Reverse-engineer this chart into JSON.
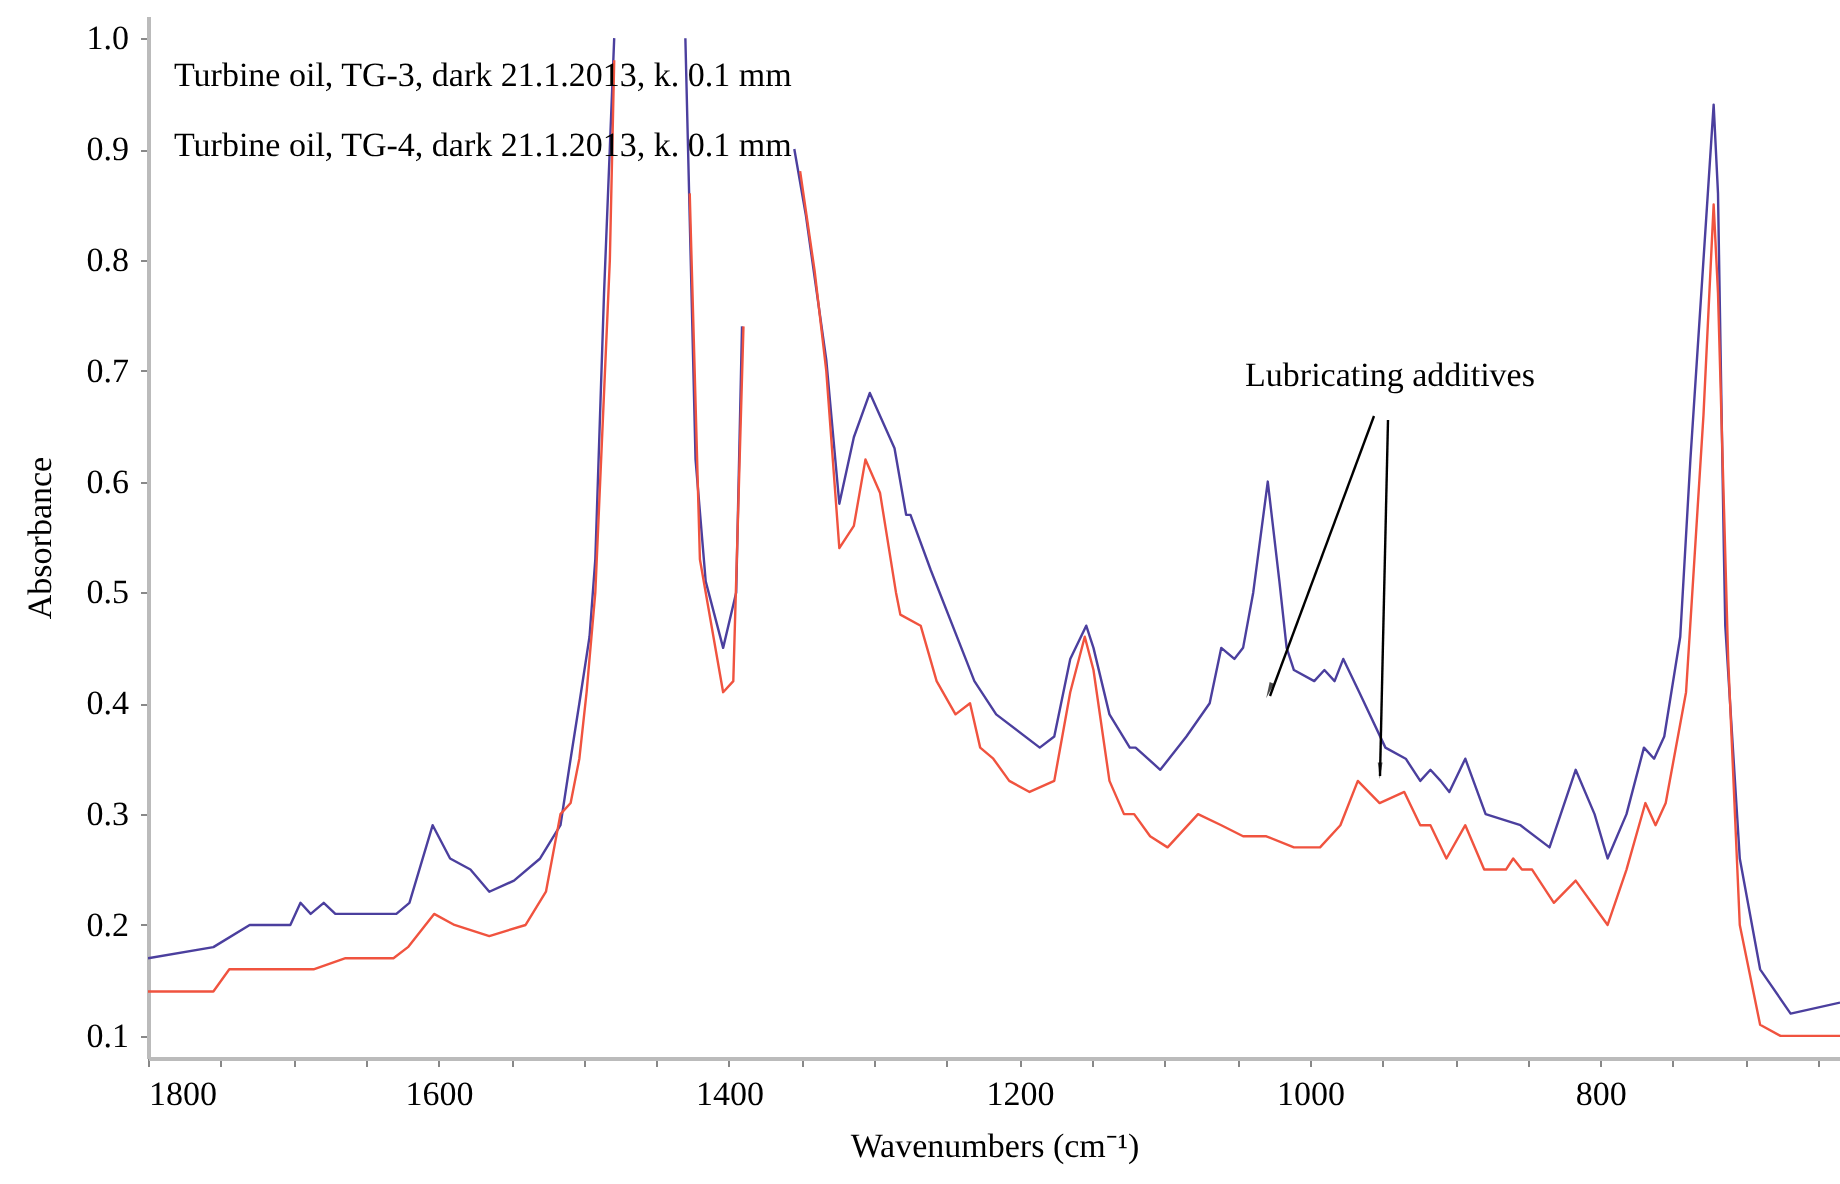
{
  "chart_data": {
    "type": "line",
    "xlabel": "Wavenumbers (cm⁻¹)",
    "ylabel": "Absorbance",
    "xlim": [
      1800,
      635
    ],
    "ylim": [
      0.08,
      1.02
    ],
    "xticks": [
      1800,
      {
        "value": 1750,
        "label": null
      },
      {
        "value": 1700,
        "label": null
      },
      {
        "value": 1650,
        "label": null
      },
      1600,
      {
        "value": 1550,
        "label": null
      },
      {
        "value": 1500,
        "label": null
      },
      {
        "value": 1450,
        "label": null
      },
      1400,
      {
        "value": 1350,
        "label": null
      },
      {
        "value": 1300,
        "label": null
      },
      {
        "value": 1250,
        "label": null
      },
      1200,
      {
        "value": 1150,
        "label": null
      },
      {
        "value": 1100,
        "label": null
      },
      {
        "value": 1050,
        "label": null
      },
      1000,
      {
        "value": 950,
        "label": null
      },
      {
        "value": 900,
        "label": null
      },
      {
        "value": 850,
        "label": null
      },
      800,
      {
        "value": 750,
        "label": null
      },
      {
        "value": 700,
        "label": null
      },
      {
        "value": 650,
        "label": null
      }
    ],
    "yticks": [
      0.1,
      0.2,
      0.3,
      0.4,
      0.5,
      0.6,
      0.7,
      0.8,
      0.9,
      {
        "value": 1,
        "label": "1.0"
      }
    ],
    "grid": false,
    "marker": "none",
    "line_style": "solid",
    "annotations": [
      "Turbine oil, TG-3, dark 21.1.2013, k. 0.1 mm",
      "Turbine oil, TG-4, dark 21.1.2013, k. 0.1 mm",
      "Lubricating additives"
    ],
    "series": [
      {
        "color": "#4b3f9e",
        "x": [
          1800,
          1755,
          1730,
          1702,
          1695,
          1688,
          1679,
          1671,
          1661,
          1650,
          1629,
          1620,
          1604,
          1592,
          1578,
          1565,
          1548,
          1530,
          1516,
          1509,
          1503,
          1496,
          1492,
          1486,
          1479,
          1477,
          1455,
          1432,
          1430,
          1423,
          1416,
          1404,
          1395,
          1391,
          1384,
          1372,
          1361,
          1355,
          1347,
          1333,
          1324,
          1314,
          1303,
          1286,
          1278,
          1275,
          1261,
          1237,
          1231,
          1216,
          1186,
          1176,
          1165,
          1154,
          1149,
          1138,
          1124,
          1120,
          1103,
          1085,
          1069,
          1061,
          1052,
          1046,
          1039,
          1029,
          1021,
          1016,
          1011,
          997,
          990,
          983,
          977,
          966,
          948,
          934,
          924,
          917,
          910,
          904,
          893,
          879,
          855,
          835,
          817,
          804,
          795,
          782,
          770,
          763,
          756,
          745,
          738,
          729,
          722,
          719,
          715,
          714,
          704,
          690,
          669,
          635
        ],
        "values": [
          0.17,
          0.18,
          0.2,
          0.2,
          0.22,
          0.21,
          0.22,
          0.21,
          0.21,
          0.21,
          0.21,
          0.22,
          0.29,
          0.26,
          0.25,
          0.23,
          0.24,
          0.26,
          0.29,
          0.35,
          0.4,
          0.46,
          0.53,
          0.77,
          1.0,
          null,
          null,
          null,
          1.0,
          0.62,
          0.51,
          0.45,
          0.5,
          0.74,
          null,
          null,
          null,
          0.9,
          0.84,
          0.71,
          0.58,
          0.64,
          0.68,
          0.63,
          0.57,
          0.57,
          0.52,
          0.44,
          0.42,
          0.39,
          0.36,
          0.37,
          0.44,
          0.47,
          0.45,
          0.39,
          0.36,
          0.36,
          0.34,
          0.37,
          0.4,
          0.45,
          0.44,
          0.45,
          0.5,
          0.6,
          0.51,
          0.45,
          0.43,
          0.42,
          0.43,
          0.42,
          0.44,
          0.41,
          0.36,
          0.35,
          0.33,
          0.34,
          0.33,
          0.32,
          0.35,
          0.3,
          0.29,
          0.27,
          0.34,
          0.3,
          0.26,
          0.3,
          0.36,
          0.35,
          0.37,
          0.46,
          0.62,
          0.8,
          0.94,
          0.86,
          0.54,
          0.47,
          0.26,
          0.16,
          0.12,
          0.13
        ]
      },
      {
        "color": "#f0533f",
        "x": [
          1800,
          1792,
          1782,
          1755,
          1744,
          1730,
          1709,
          1686,
          1664,
          1631,
          1621,
          1603,
          1589,
          1565,
          1540,
          1526,
          1516,
          1509,
          1503,
          1498,
          1492,
          1482,
          1479,
          1476,
          1450,
          1432,
          1427,
          1420,
          1404,
          1397,
          1390,
          1386,
          1372,
          1359,
          1351,
          1341,
          1333,
          1324,
          1314,
          1306,
          1296,
          1285,
          1282,
          1268,
          1257,
          1244,
          1234,
          1227,
          1218,
          1207,
          1193,
          1176,
          1165,
          1155,
          1149,
          1138,
          1128,
          1121,
          1110,
          1098,
          1077,
          1061,
          1046,
          1030,
          1011,
          993,
          979,
          967,
          952,
          935,
          924,
          917,
          906,
          893,
          880,
          865,
          860,
          854,
          847,
          832,
          817,
          795,
          782,
          769,
          762,
          755,
          741,
          729,
          722,
          719,
          712,
          704,
          690,
          676,
          635
        ],
        "values": [
          0.14,
          0.14,
          0.14,
          0.14,
          0.16,
          0.16,
          0.16,
          0.16,
          0.17,
          0.17,
          0.18,
          0.21,
          0.2,
          0.19,
          0.2,
          0.23,
          0.3,
          0.31,
          0.35,
          0.41,
          0.5,
          0.8,
          0.98,
          null,
          null,
          null,
          0.86,
          0.53,
          0.41,
          0.42,
          0.74,
          null,
          null,
          null,
          0.88,
          0.79,
          0.7,
          0.54,
          0.56,
          0.62,
          0.59,
          0.5,
          0.48,
          0.47,
          0.42,
          0.39,
          0.4,
          0.36,
          0.35,
          0.33,
          0.32,
          0.33,
          0.41,
          0.46,
          0.43,
          0.33,
          0.3,
          0.3,
          0.28,
          0.27,
          0.3,
          0.29,
          0.28,
          0.28,
          0.27,
          0.27,
          0.29,
          0.33,
          0.31,
          0.32,
          0.29,
          0.29,
          0.26,
          0.29,
          0.25,
          0.25,
          0.26,
          0.25,
          0.25,
          0.22,
          0.24,
          0.2,
          0.25,
          0.31,
          0.29,
          0.31,
          0.41,
          0.66,
          0.85,
          0.77,
          0.44,
          0.2,
          0.11,
          0.1,
          0.1
        ]
      }
    ]
  }
}
